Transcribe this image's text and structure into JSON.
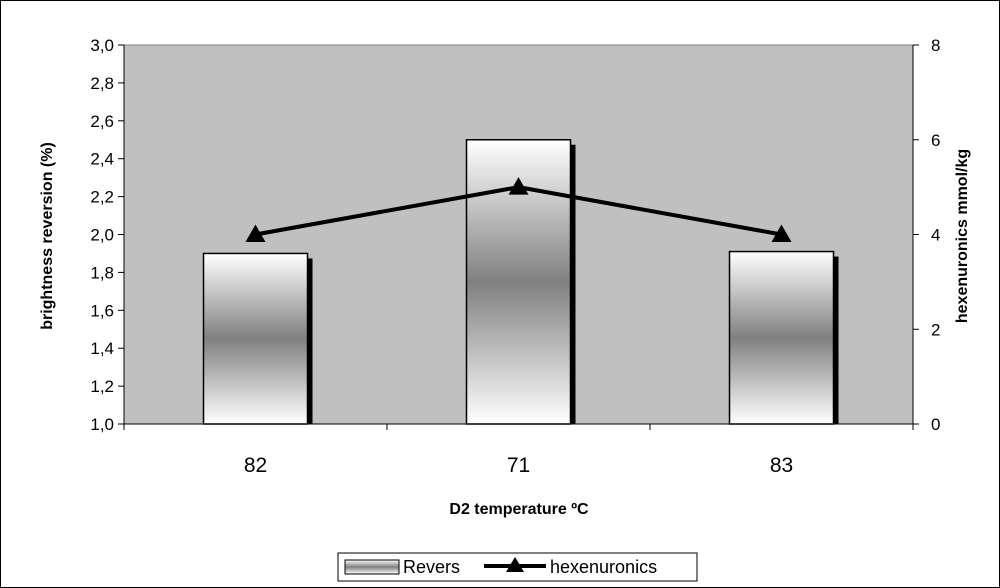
{
  "chart_data": {
    "type": "bar",
    "categories": [
      "82",
      "71",
      "83"
    ],
    "series": [
      {
        "name": "Revers",
        "type": "bar",
        "axis": "left",
        "values": [
          1.9,
          2.5,
          1.91
        ]
      },
      {
        "name": "hexenuronics",
        "type": "line",
        "axis": "right",
        "marker": "triangle",
        "values": [
          4,
          5,
          4
        ]
      }
    ],
    "xlabel": "D2 temperature ºC",
    "ylabel": "brightness reversion (%)",
    "y2label": "hexenuronics mmol/kg",
    "ylim": [
      1.0,
      3.0
    ],
    "y2lim": [
      0,
      8
    ],
    "yticks": [
      "1,0",
      "1,2",
      "1,4",
      "1,6",
      "1,8",
      "2,0",
      "2,2",
      "2,4",
      "2,6",
      "2,8",
      "3,0"
    ],
    "y2ticks": [
      "0",
      "2",
      "4",
      "6",
      "8"
    ],
    "grid": false,
    "plot_background": "#c0c0c0",
    "line_color": "#000000",
    "legend_position": "bottom"
  }
}
